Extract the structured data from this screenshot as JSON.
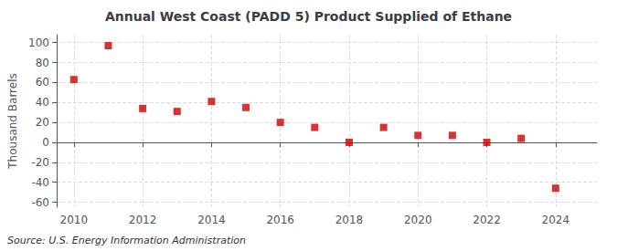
{
  "chart_data": {
    "type": "scatter",
    "title": "Annual West Coast (PADD 5) Product Supplied of Ethane",
    "ylabel": "Thousand Barrels",
    "source": "Source: U.S. Energy Information Administration",
    "x": [
      2010,
      2011,
      2012,
      2013,
      2014,
      2015,
      2016,
      2017,
      2018,
      2019,
      2020,
      2021,
      2022,
      2023,
      2024
    ],
    "values": [
      63,
      97,
      34,
      31,
      41,
      35,
      20,
      15,
      0,
      15,
      7,
      7,
      0,
      4,
      -46
    ],
    "color": "#cc0000",
    "marker": "square",
    "xlim": [
      2009.5,
      2025.2
    ],
    "ylim": [
      -65,
      108
    ],
    "xticks": [
      2010,
      2012,
      2014,
      2016,
      2018,
      2020,
      2022,
      2024
    ],
    "yticks": [
      -60,
      -40,
      -20,
      0,
      20,
      40,
      60,
      80,
      100
    ],
    "grid": true
  }
}
